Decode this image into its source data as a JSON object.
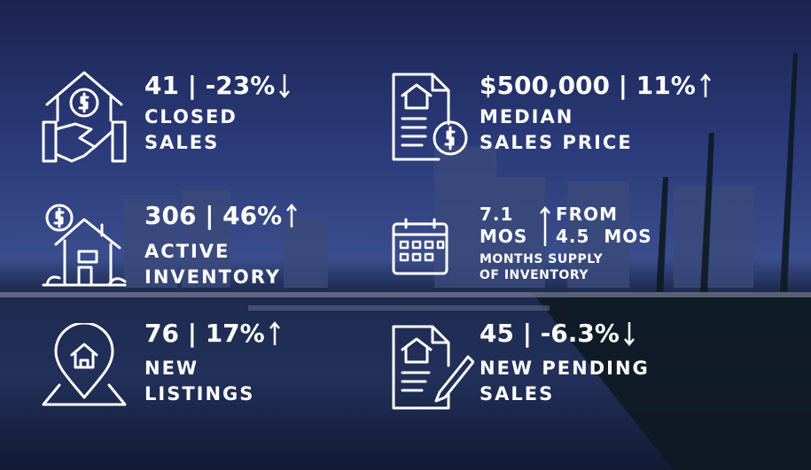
{
  "stats": [
    {
      "value": "41 | -23%",
      "label": [
        "CLOSED",
        "SALES"
      ]
    },
    {
      "value": "$500,000 | 11%",
      "label": [
        "MEDIAN",
        "SALES PRICE"
      ]
    },
    {
      "value": "306 | 46%",
      "label": [
        "ACTIVE",
        "INVENTORY"
      ]
    },
    {
      "value": "76 | 17%",
      "label": [
        "NEW",
        "LISTINGS"
      ]
    },
    {
      "value": "45 | -6.3%",
      "label": [
        "NEW PENDING",
        "SALES"
      ]
    }
  ],
  "months_supply": {
    "current": "7.1",
    "current_unit": "MOS",
    "from": "FROM",
    "previous": "4.5  MOS",
    "label": [
      "MONTHS SUPPLY",
      "OF INVENTORY"
    ]
  }
}
